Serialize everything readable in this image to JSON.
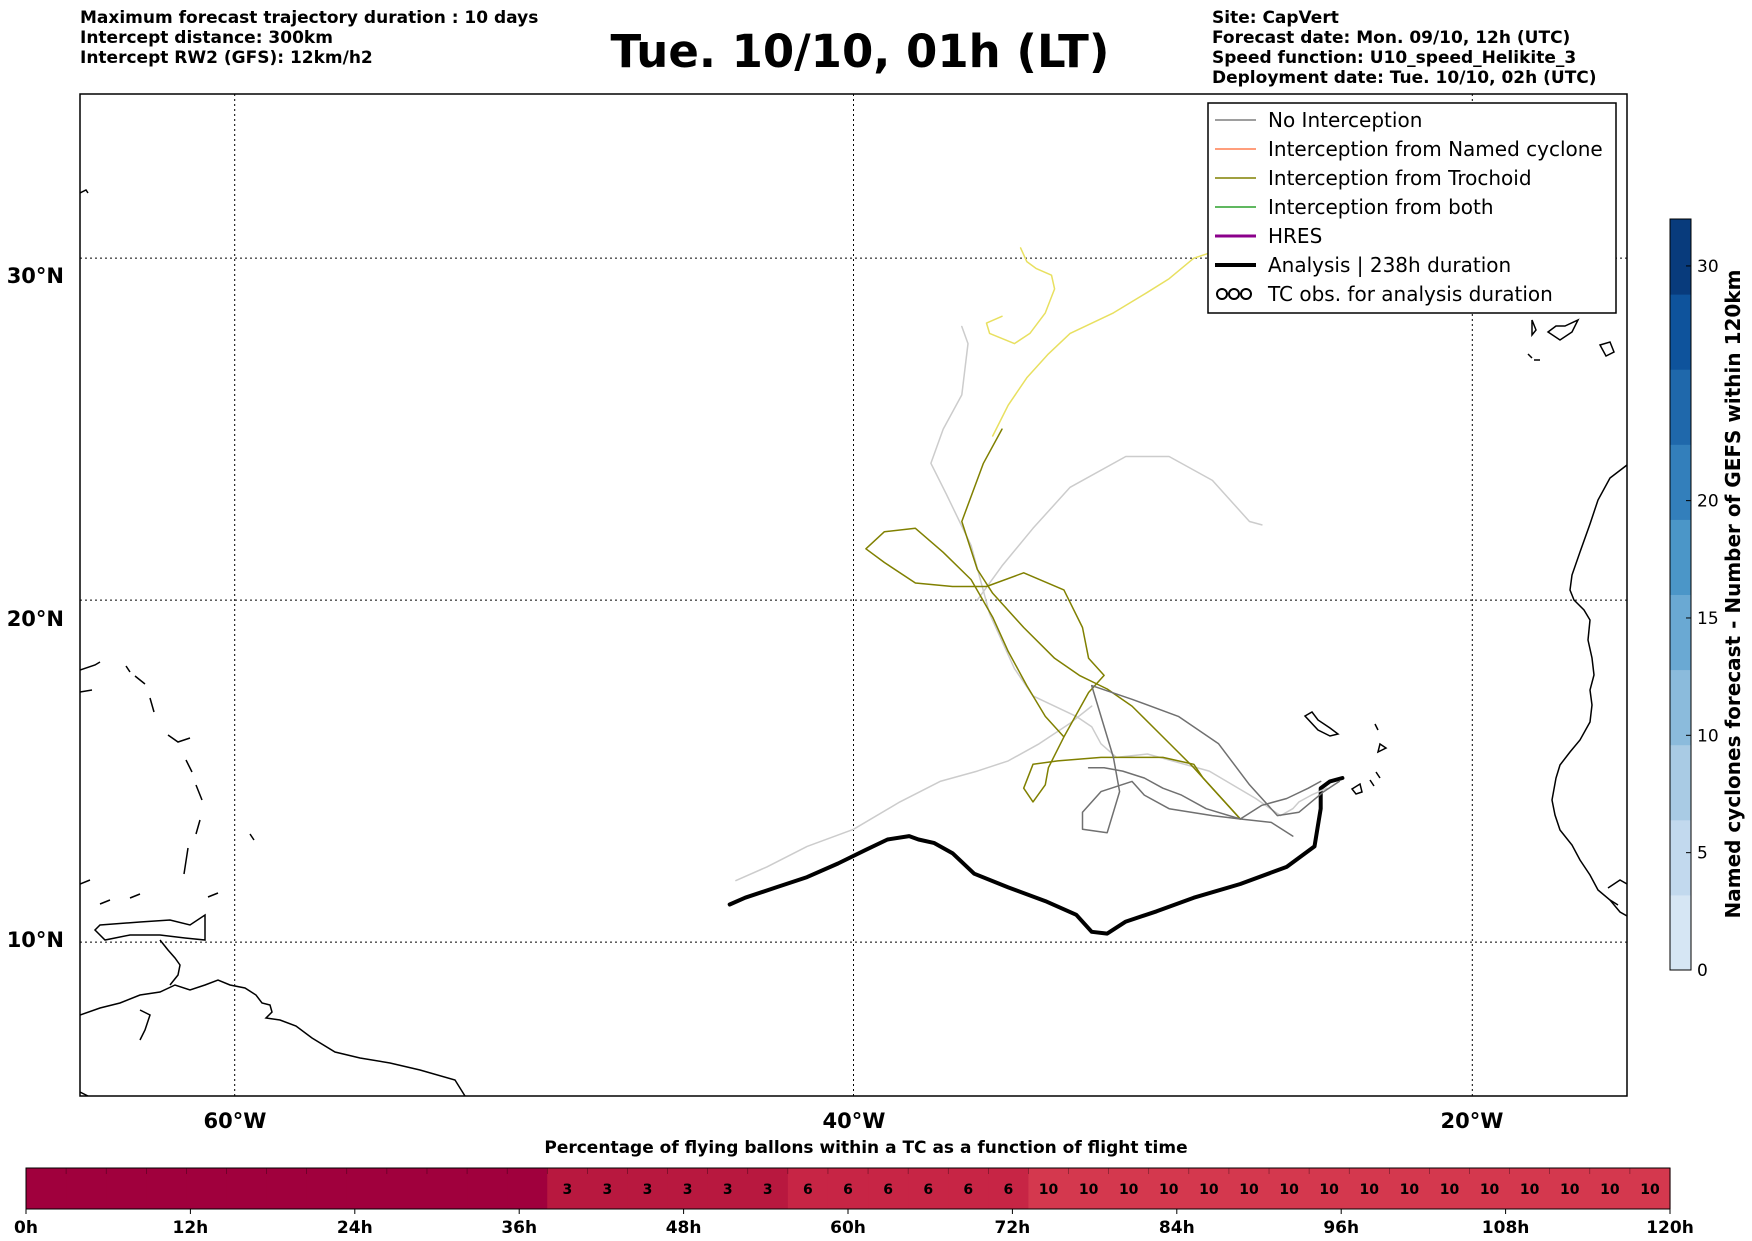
{
  "header": {
    "left": [
      "Maximum forecast trajectory duration : 10 days",
      "Intercept distance: 300km",
      "Intercept RW2 (GFS):  12km/h2"
    ],
    "title": "Tue. 10/10, 01h (LT)",
    "right": [
      "Site: CapVert",
      "Forecast date: Mon. 09/10, 12h (UTC)",
      "Speed function: U10_speed_Helikite_3",
      "Deployment date: Tue. 10/10, 02h (UTC)"
    ]
  },
  "map": {
    "lon_ticks": [
      "60°W",
      "40°W",
      "20°W"
    ],
    "lat_ticks": [
      "30°N",
      "20°N",
      "10°N"
    ],
    "lon_range": [
      -65,
      -15
    ],
    "lat_range": [
      5.5,
      34.8
    ]
  },
  "legend": {
    "items": [
      {
        "label": "No Interception",
        "color": "#7f7f7f",
        "style": "line-thin"
      },
      {
        "label": "Interception from Named cyclone",
        "color": "#ff7f50",
        "style": "line-thin"
      },
      {
        "label": "Interception from Trochoid",
        "color": "#808000",
        "style": "line-thin"
      },
      {
        "label": "Interception from both",
        "color": "#2ca02c",
        "style": "line-thin"
      },
      {
        "label": "HRES",
        "color": "#8b008b",
        "style": "line-mid"
      },
      {
        "label": "Analysis | 238h duration",
        "color": "#000000",
        "style": "line-thick"
      },
      {
        "label": "TC obs. for analysis duration",
        "color": "#000000",
        "style": "tc-symbols"
      }
    ]
  },
  "colorbar": {
    "label": "Named cyclones forecast - Number of GEFS within 120km",
    "ticks": [
      "0",
      "5",
      "10",
      "15",
      "20",
      "30"
    ],
    "range": [
      0,
      32
    ],
    "colors": [
      "#d6e6f4",
      "#c2d9ee",
      "#a9cbe4",
      "#8bbbdc",
      "#6aa9d3",
      "#4b96c8",
      "#337fbb",
      "#1f68ab",
      "#0e539c",
      "#083b7c"
    ]
  },
  "bottom_bar": {
    "title": "Percentage of flying ballons within a TC as a function of flight time",
    "tick_labels": [
      "0h",
      "12h",
      "24h",
      "36h",
      "48h",
      "60h",
      "72h",
      "84h",
      "96h",
      "108h",
      "120h"
    ],
    "hours_per_cell": 3,
    "zero_color": "#a0003d",
    "color_3": "#b8183f",
    "color_6": "#c72545",
    "color_10": "#d4384e",
    "cell_values": [
      "",
      "",
      "",
      "",
      "",
      "",
      "",
      "",
      "",
      "",
      "",
      "",
      "",
      "3",
      "3",
      "3",
      "3",
      "3",
      "3",
      "6",
      "6",
      "6",
      "6",
      "6",
      "6",
      "10",
      "10",
      "10",
      "10",
      "10",
      "10",
      "10",
      "10",
      "10",
      "10",
      "10",
      "10",
      "10",
      "10",
      "10",
      "10"
    ]
  },
  "chart_data": {
    "type": "line",
    "x_axis": "longitude (°E, negative = °W)",
    "y_axis": "latitude (°N)",
    "xlim": [
      -65,
      -15
    ],
    "ylim": [
      5.5,
      34.8
    ],
    "series": [
      {
        "name": "Analysis | 238h duration",
        "color": "#000000",
        "width": 4,
        "points": [
          [
            -24.2,
            14.8
          ],
          [
            -24.6,
            14.7
          ],
          [
            -24.9,
            14.5
          ],
          [
            -24.9,
            13.9
          ],
          [
            -25.1,
            12.8
          ],
          [
            -26.0,
            12.2
          ],
          [
            -27.5,
            11.7
          ],
          [
            -29.0,
            11.3
          ],
          [
            -30.2,
            10.9
          ],
          [
            -31.2,
            10.6
          ],
          [
            -31.8,
            10.25
          ],
          [
            -32.3,
            10.3
          ],
          [
            -32.8,
            10.8
          ],
          [
            -33.8,
            11.2
          ],
          [
            -35.0,
            11.6
          ],
          [
            -36.1,
            12.0
          ],
          [
            -36.8,
            12.6
          ],
          [
            -37.4,
            12.9
          ],
          [
            -37.9,
            13.0
          ],
          [
            -38.2,
            13.1
          ],
          [
            -38.9,
            13.0
          ],
          [
            -39.6,
            12.7
          ],
          [
            -40.5,
            12.3
          ],
          [
            -41.5,
            11.9
          ],
          [
            -42.5,
            11.6
          ],
          [
            -43.5,
            11.3
          ],
          [
            -44.0,
            11.1
          ]
        ]
      },
      {
        "name": "",
        "color": "#cccccc",
        "width": 1.5,
        "points": [
          [
            -24.7,
            14.5
          ],
          [
            -25.2,
            14.3
          ],
          [
            -25.6,
            14.1
          ],
          [
            -25.8,
            13.9
          ],
          [
            -26.2,
            13.7
          ],
          [
            -27.0,
            14.2
          ],
          [
            -28.5,
            15.0
          ],
          [
            -30.5,
            15.5
          ],
          [
            -31.5,
            15.4
          ],
          [
            -32.0,
            15.8
          ],
          [
            -32.3,
            16.3
          ],
          [
            -32.8,
            16.6
          ],
          [
            -34.2,
            17.2
          ],
          [
            -34.8,
            18.0
          ],
          [
            -35.6,
            19.6
          ],
          [
            -36.2,
            21.6
          ],
          [
            -37.0,
            23.1
          ],
          [
            -37.5,
            24.0
          ],
          [
            -37.1,
            25.0
          ],
          [
            -36.5,
            26.0
          ],
          [
            -36.3,
            27.5
          ],
          [
            -36.5,
            28.0
          ]
        ]
      },
      {
        "name": "",
        "color": "#cccccc",
        "width": 1.5,
        "points": [
          [
            -32.3,
            16.9
          ],
          [
            -33.0,
            16.4
          ],
          [
            -34.0,
            15.8
          ],
          [
            -35.0,
            15.3
          ],
          [
            -36.0,
            15.0
          ],
          [
            -37.2,
            14.7
          ],
          [
            -38.5,
            14.1
          ],
          [
            -40.0,
            13.3
          ],
          [
            -41.5,
            12.8
          ],
          [
            -42.8,
            12.2
          ],
          [
            -43.8,
            11.8
          ]
        ]
      },
      {
        "name": "",
        "color": "#cccccc",
        "width": 1.5,
        "points": [
          [
            -36.0,
            20.0
          ],
          [
            -35.2,
            21.0
          ],
          [
            -34.2,
            22.1
          ],
          [
            -33.0,
            23.3
          ],
          [
            -31.2,
            24.2
          ],
          [
            -29.8,
            24.2
          ],
          [
            -28.4,
            23.5
          ],
          [
            -27.2,
            22.3
          ],
          [
            -26.8,
            22.2
          ]
        ]
      },
      {
        "name": "",
        "color": "#e8e060",
        "width": 1.5,
        "points": [
          [
            -35.5,
            24.8
          ],
          [
            -35.0,
            25.7
          ],
          [
            -34.4,
            26.5
          ],
          [
            -33.7,
            27.2
          ],
          [
            -33.0,
            27.8
          ],
          [
            -31.6,
            28.4
          ],
          [
            -30.5,
            29.0
          ],
          [
            -29.8,
            29.4
          ],
          [
            -29.0,
            30.0
          ],
          [
            -28.0,
            30.3
          ],
          [
            -26.0,
            30.2
          ],
          [
            -24.0,
            30.0
          ],
          [
            -22.0,
            29.8
          ],
          [
            -20.0,
            29.4
          ]
        ]
      },
      {
        "name": "",
        "color": "#e8e060",
        "width": 1.5,
        "points": [
          [
            -34.6,
            30.3
          ],
          [
            -34.4,
            29.9
          ],
          [
            -34.1,
            29.7
          ],
          [
            -33.6,
            29.5
          ],
          [
            -33.5,
            29.1
          ],
          [
            -33.8,
            28.4
          ],
          [
            -34.3,
            27.8
          ],
          [
            -34.8,
            27.5
          ],
          [
            -35.6,
            27.8
          ],
          [
            -35.7,
            28.1
          ],
          [
            -35.2,
            28.3
          ]
        ]
      },
      {
        "name": "",
        "color": "#808000",
        "width": 1.5,
        "points": [
          [
            -27.5,
            13.6
          ],
          [
            -28.2,
            14.3
          ],
          [
            -29.0,
            15.1
          ],
          [
            -30.0,
            16.0
          ],
          [
            -31.0,
            16.9
          ],
          [
            -31.8,
            17.4
          ],
          [
            -32.7,
            17.8
          ],
          [
            -33.5,
            18.3
          ],
          [
            -34.5,
            19.2
          ],
          [
            -35.5,
            20.2
          ],
          [
            -36.0,
            20.9
          ],
          [
            -36.5,
            22.3
          ],
          [
            -35.8,
            24.0
          ],
          [
            -35.2,
            25.0
          ]
        ]
      },
      {
        "name": "",
        "color": "#808000",
        "width": 1.5,
        "points": [
          [
            -27.5,
            13.6
          ],
          [
            -28.0,
            14.1
          ],
          [
            -28.7,
            14.8
          ],
          [
            -29.0,
            15.2
          ],
          [
            -30.0,
            15.4
          ],
          [
            -32.0,
            15.4
          ],
          [
            -33.4,
            15.3
          ],
          [
            -34.2,
            15.2
          ],
          [
            -34.5,
            14.5
          ],
          [
            -34.2,
            14.1
          ],
          [
            -33.8,
            14.6
          ],
          [
            -33.7,
            15.1
          ],
          [
            -33.2,
            16.0
          ],
          [
            -32.4,
            17.3
          ],
          [
            -31.9,
            17.8
          ],
          [
            -32.4,
            18.3
          ],
          [
            -32.6,
            19.2
          ],
          [
            -33.2,
            20.3
          ],
          [
            -34.5,
            20.8
          ],
          [
            -35.7,
            20.4
          ],
          [
            -36.8,
            20.4
          ],
          [
            -38.0,
            20.5
          ],
          [
            -39.0,
            21.1
          ],
          [
            -39.6,
            21.5
          ],
          [
            -39.0,
            22.0
          ],
          [
            -38.0,
            22.1
          ],
          [
            -37.1,
            21.4
          ],
          [
            -36.2,
            20.6
          ],
          [
            -35.5,
            19.5
          ],
          [
            -35.0,
            18.5
          ],
          [
            -34.4,
            17.5
          ],
          [
            -33.8,
            16.6
          ],
          [
            -33.2,
            16.0
          ]
        ]
      },
      {
        "name": "",
        "color": "#707070",
        "width": 1.5,
        "points": [
          [
            -25.8,
            13.1
          ],
          [
            -26.5,
            13.5
          ],
          [
            -27.5,
            13.6
          ],
          [
            -28.4,
            13.7
          ],
          [
            -29.8,
            13.9
          ],
          [
            -30.6,
            14.3
          ],
          [
            -31.0,
            14.7
          ],
          [
            -32.0,
            14.4
          ],
          [
            -32.6,
            13.8
          ],
          [
            -32.6,
            13.3
          ],
          [
            -31.8,
            13.2
          ],
          [
            -31.4,
            14.4
          ],
          [
            -31.6,
            15.4
          ],
          [
            -32.3,
            17.5
          ],
          [
            -31.0,
            17.1
          ],
          [
            -29.5,
            16.6
          ],
          [
            -28.2,
            15.8
          ],
          [
            -27.2,
            14.6
          ],
          [
            -26.3,
            13.7
          ],
          [
            -25.6,
            13.8
          ],
          [
            -24.8,
            14.4
          ],
          [
            -24.3,
            14.7
          ]
        ]
      },
      {
        "name": "",
        "color": "#707070",
        "width": 1.5,
        "points": [
          [
            -24.9,
            14.7
          ],
          [
            -25.3,
            14.5
          ],
          [
            -26.0,
            14.2
          ],
          [
            -26.8,
            14.0
          ],
          [
            -27.5,
            13.6
          ],
          [
            -28.6,
            13.9
          ],
          [
            -29.4,
            14.3
          ],
          [
            -30.0,
            14.5
          ],
          [
            -30.6,
            14.8
          ],
          [
            -31.3,
            15.0
          ],
          [
            -31.9,
            15.1
          ],
          [
            -32.4,
            15.1
          ]
        ]
      }
    ]
  }
}
